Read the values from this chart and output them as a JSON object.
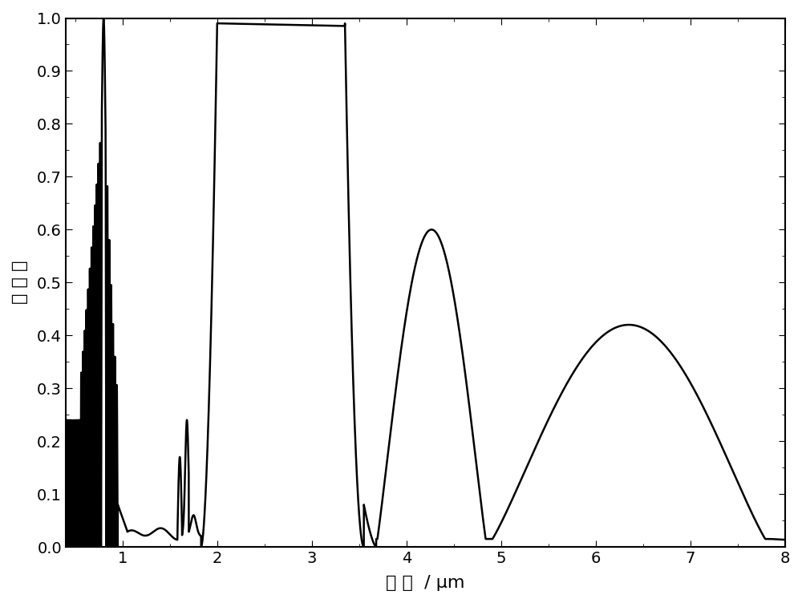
{
  "title": "",
  "xlabel": "波 长  / μm",
  "ylabel": "反 射 率",
  "xlim": [
    0.4,
    8.0
  ],
  "ylim": [
    0.0,
    1.0
  ],
  "xticks": [
    1,
    2,
    3,
    4,
    5,
    6,
    7,
    8
  ],
  "yticks": [
    0.0,
    0.1,
    0.2,
    0.3,
    0.4,
    0.5,
    0.6,
    0.7,
    0.8,
    0.9,
    1.0
  ],
  "line_color": "#000000",
  "line_width": 1.8,
  "background_color": "#ffffff",
  "tick_fontsize": 14,
  "label_fontsize": 16
}
